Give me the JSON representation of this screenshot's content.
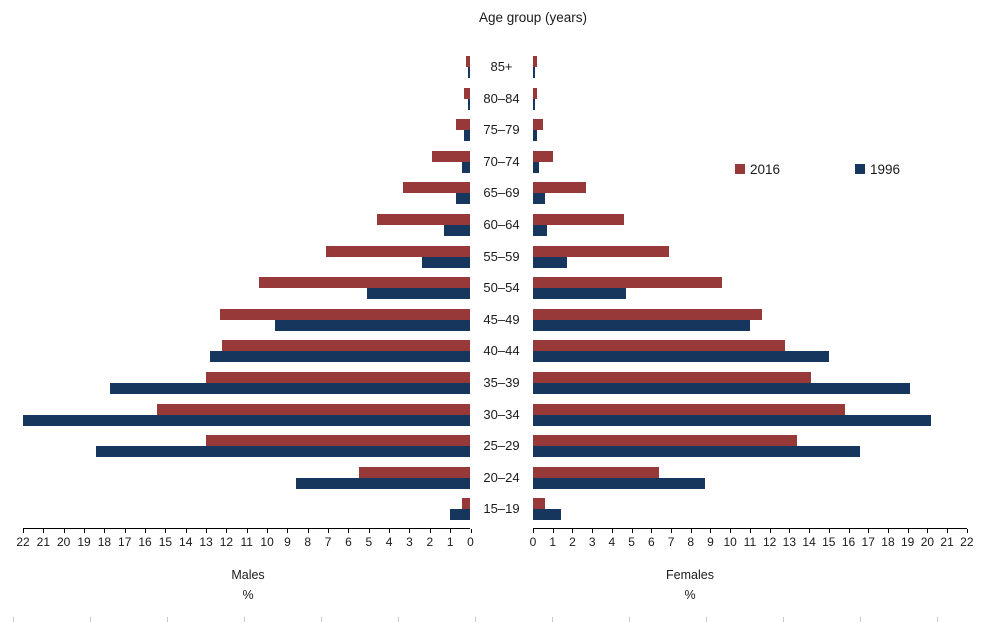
{
  "title": "Age group (years)",
  "legend": [
    {
      "label": "2016",
      "color": "#963938"
    },
    {
      "label": "1996",
      "color": "#17365D"
    }
  ],
  "captions": {
    "males": "Males",
    "females": "Females",
    "unit_left": "%",
    "unit_right": "%"
  },
  "chart_data": {
    "type": "bar",
    "subtype": "population-pyramid",
    "title": "Age group (years)",
    "unit": "%",
    "grid": false,
    "legend_position": "top-right",
    "axis": {
      "min": 0,
      "max": 22,
      "tick_step": 1,
      "tick_labels": [
        0,
        1,
        2,
        3,
        4,
        5,
        6,
        7,
        8,
        9,
        10,
        11,
        12,
        13,
        14,
        15,
        16,
        17,
        18,
        19,
        20,
        21,
        22
      ]
    },
    "age_groups": [
      "85+",
      "80–84",
      "75–79",
      "70–74",
      "65–69",
      "60–64",
      "55–59",
      "50–54",
      "45–49",
      "40–44",
      "35–39",
      "30–34",
      "25–29",
      "20–24",
      "15–19"
    ],
    "males": {
      "label": "Males",
      "series": [
        {
          "name": "2016",
          "color": "#963938",
          "values": [
            0.2,
            0.3,
            0.7,
            1.9,
            3.3,
            4.6,
            7.1,
            10.4,
            12.3,
            12.2,
            13.0,
            15.4,
            13.0,
            5.5,
            0.4
          ]
        },
        {
          "name": "1996",
          "color": "#17365D",
          "values": [
            0.1,
            0.1,
            0.3,
            0.4,
            0.7,
            1.3,
            2.4,
            5.1,
            9.6,
            12.8,
            17.7,
            22.0,
            18.4,
            8.6,
            1.0
          ]
        }
      ]
    },
    "females": {
      "label": "Females",
      "series": [
        {
          "name": "2016",
          "color": "#963938",
          "values": [
            0.2,
            0.2,
            0.5,
            1.0,
            2.7,
            4.6,
            6.9,
            9.6,
            11.6,
            12.8,
            14.1,
            15.8,
            13.4,
            6.4,
            0.6
          ]
        },
        {
          "name": "1996",
          "color": "#17365D",
          "values": [
            0.1,
            0.1,
            0.2,
            0.3,
            0.6,
            0.7,
            1.7,
            4.7,
            11.0,
            15.0,
            19.1,
            20.2,
            16.6,
            8.7,
            1.4
          ]
        }
      ]
    }
  }
}
